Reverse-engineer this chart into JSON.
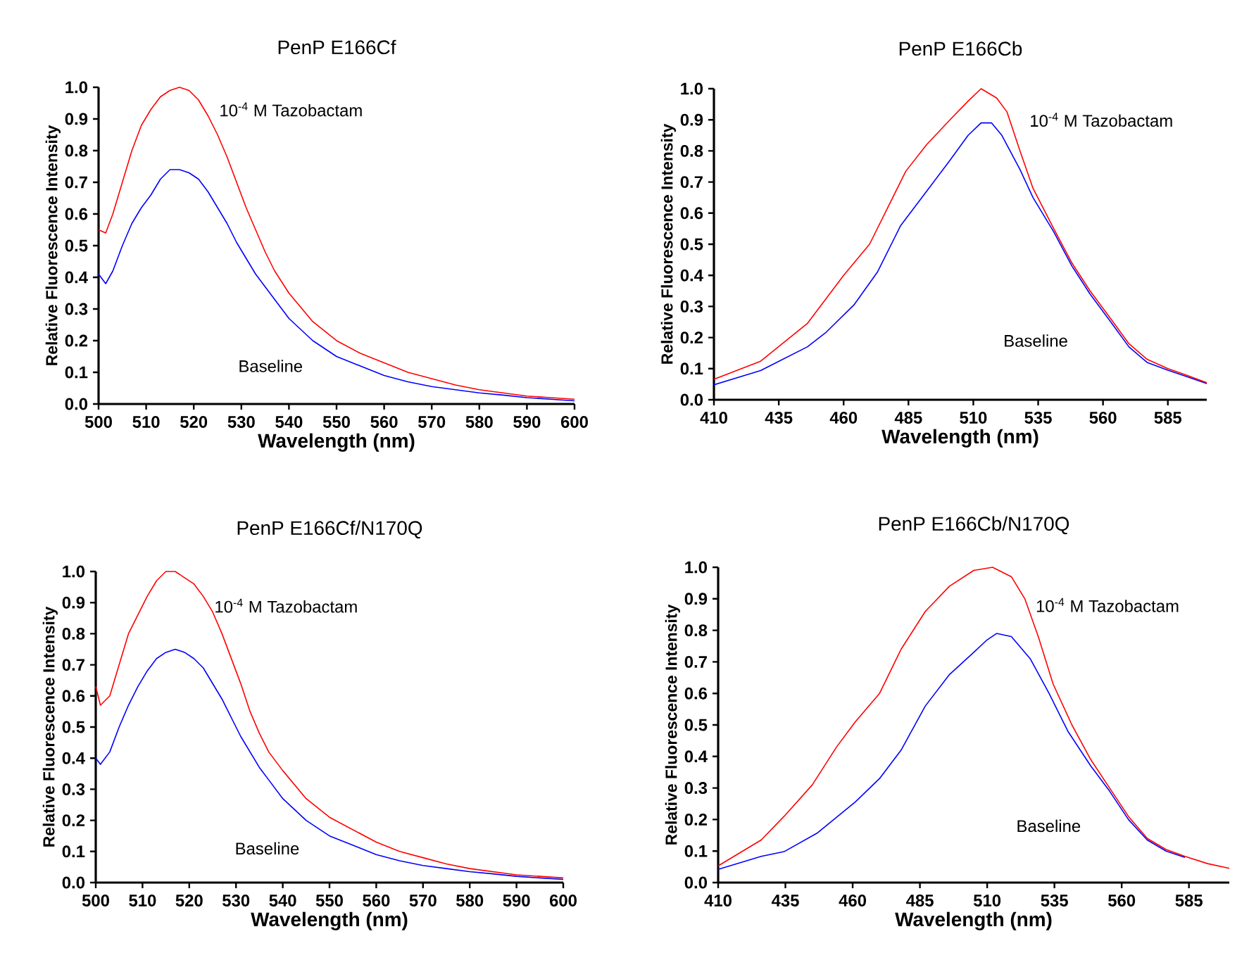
{
  "chart_data": [
    {
      "type": "line",
      "title": "PenP E166Cf",
      "xlabel": "Wavelength (nm)",
      "ylabel": "Relative Fluorescence Intensity",
      "xlim": [
        500,
        600
      ],
      "ylim": [
        0,
        1.0
      ],
      "xticks": [
        500,
        510,
        520,
        530,
        540,
        550,
        560,
        570,
        580,
        590,
        600
      ],
      "yticks": [
        {
          "value": 0,
          "label": "0.0"
        },
        {
          "value": 0.1,
          "label": "0.1"
        },
        {
          "value": 0.2,
          "label": "0.2"
        },
        {
          "value": 0.3,
          "label": "0.3"
        },
        {
          "value": 0.4,
          "label": "0.4"
        },
        {
          "value": 0.5,
          "label": "0.5"
        },
        {
          "value": 0.6,
          "label": "0.6"
        },
        {
          "value": 0.7,
          "label": "0.7"
        },
        {
          "value": 0.8,
          "label": "0.8"
        },
        {
          "value": 0.9,
          "label": "0.9"
        },
        {
          "value": 1,
          "label": "1.0"
        }
      ],
      "series": [
        {
          "color": "#ff0000",
          "x": [
            500,
            501.5,
            503,
            505,
            507,
            509,
            511,
            513,
            515,
            517,
            519,
            521,
            523,
            525,
            527,
            529,
            531,
            533,
            535,
            537,
            540,
            545,
            550,
            555,
            560,
            565,
            570,
            575,
            580,
            585,
            590,
            595,
            600
          ],
          "values": [
            0.55,
            0.54,
            0.6,
            0.7,
            0.8,
            0.88,
            0.93,
            0.97,
            0.99,
            1.0,
            0.99,
            0.96,
            0.91,
            0.85,
            0.78,
            0.7,
            0.62,
            0.55,
            0.48,
            0.42,
            0.35,
            0.26,
            0.2,
            0.16,
            0.13,
            0.1,
            0.08,
            0.06,
            0.045,
            0.035,
            0.025,
            0.02,
            0.015
          ]
        },
        {
          "color": "#0000ff",
          "x": [
            500,
            501.5,
            503,
            505,
            507,
            509,
            511,
            513,
            515,
            517,
            519,
            521,
            523,
            525,
            527,
            529,
            531,
            533,
            535,
            537,
            540,
            545,
            550,
            555,
            560,
            565,
            570,
            575,
            580,
            585,
            590,
            595,
            600
          ],
          "values": [
            0.41,
            0.38,
            0.42,
            0.5,
            0.57,
            0.62,
            0.66,
            0.71,
            0.74,
            0.74,
            0.73,
            0.71,
            0.67,
            0.62,
            0.57,
            0.51,
            0.46,
            0.41,
            0.37,
            0.33,
            0.27,
            0.2,
            0.15,
            0.12,
            0.09,
            0.07,
            0.055,
            0.045,
            0.035,
            0.028,
            0.02,
            0.015,
            0.01
          ]
        }
      ],
      "annotations": [
        "10$^{-4}$ M Tazobactam",
        "Baseline"
      ]
    },
    {
      "type": "line",
      "title": "PenP E166Cb",
      "xlabel": "Wavelength (nm)",
      "ylabel": "Relative Fluorescence Intensity",
      "xlim": [
        410,
        600
      ],
      "ylim": [
        0,
        1.0
      ],
      "xticks": [
        410,
        435,
        460,
        485,
        510,
        535,
        560,
        585
      ],
      "yticks": [
        {
          "value": 0,
          "label": "0.0"
        },
        {
          "value": 0.1,
          "label": "0.1"
        },
        {
          "value": 0.2,
          "label": "0.2"
        },
        {
          "value": 0.3,
          "label": "0.3"
        },
        {
          "value": 0.4,
          "label": "0.4"
        },
        {
          "value": 0.5,
          "label": "0.5"
        },
        {
          "value": 0.6,
          "label": "0.6"
        },
        {
          "value": 0.7,
          "label": "0.7"
        },
        {
          "value": 0.8,
          "label": "0.8"
        },
        {
          "value": 0.9,
          "label": "0.9"
        },
        {
          "value": 1,
          "label": "1.0"
        }
      ],
      "series": [
        {
          "color": "#ff0000",
          "x": [
            410,
            428,
            446,
            460,
            470,
            484,
            492,
            501,
            508,
            513,
            519,
            523,
            528,
            533,
            541,
            548,
            555,
            563,
            570,
            577,
            585,
            592,
            600
          ],
          "values": [
            0.066,
            0.124,
            0.245,
            0.4,
            0.5,
            0.735,
            0.82,
            0.9,
            0.96,
            1.0,
            0.97,
            0.925,
            0.8,
            0.68,
            0.55,
            0.44,
            0.35,
            0.26,
            0.18,
            0.13,
            0.1,
            0.08,
            0.055
          ]
        },
        {
          "color": "#0000ff",
          "x": [
            410,
            428,
            446,
            453,
            464,
            473,
            482,
            492,
            501,
            508,
            513,
            517,
            521,
            528,
            533,
            541,
            548,
            555,
            563,
            570,
            577,
            585,
            592,
            600
          ],
          "values": [
            0.048,
            0.094,
            0.17,
            0.215,
            0.305,
            0.41,
            0.56,
            0.67,
            0.77,
            0.85,
            0.89,
            0.89,
            0.85,
            0.74,
            0.65,
            0.54,
            0.43,
            0.34,
            0.25,
            0.17,
            0.12,
            0.095,
            0.075,
            0.052
          ]
        }
      ],
      "annotations": [
        "10$^{-4}$ M Tazobactam",
        "Baseline"
      ]
    },
    {
      "type": "line",
      "title": "PenP E166Cf/N170Q",
      "xlabel": "Wavelength (nm)",
      "ylabel": "Relative Fluorescence Intensity",
      "xlim": [
        500,
        600
      ],
      "ylim": [
        0,
        1.0
      ],
      "xticks": [
        500,
        510,
        520,
        530,
        540,
        550,
        560,
        570,
        580,
        590,
        600
      ],
      "yticks": [
        {
          "value": 0,
          "label": "0.0"
        },
        {
          "value": 0.1,
          "label": "0.1"
        },
        {
          "value": 0.2,
          "label": "0.2"
        },
        {
          "value": 0.3,
          "label": "0.3"
        },
        {
          "value": 0.4,
          "label": "0.4"
        },
        {
          "value": 0.5,
          "label": "0.5"
        },
        {
          "value": 0.6,
          "label": "0.6"
        },
        {
          "value": 0.7,
          "label": "0.7"
        },
        {
          "value": 0.8,
          "label": "0.8"
        },
        {
          "value": 0.9,
          "label": "0.9"
        },
        {
          "value": 1,
          "label": "1.0"
        }
      ],
      "series": [
        {
          "color": "#ff0000",
          "x": [
            500,
            501,
            503,
            505,
            507,
            509,
            511,
            513,
            515,
            517,
            519,
            521,
            523,
            525,
            527,
            529,
            531,
            533,
            535,
            537,
            540,
            545,
            550,
            555,
            560,
            565,
            570,
            575,
            580,
            585,
            590,
            595,
            600
          ],
          "values": [
            0.63,
            0.57,
            0.6,
            0.7,
            0.8,
            0.86,
            0.92,
            0.97,
            1.0,
            1.0,
            0.98,
            0.96,
            0.92,
            0.87,
            0.8,
            0.72,
            0.64,
            0.55,
            0.48,
            0.42,
            0.36,
            0.27,
            0.21,
            0.17,
            0.13,
            0.1,
            0.08,
            0.06,
            0.045,
            0.035,
            0.025,
            0.02,
            0.015
          ]
        },
        {
          "color": "#0000ff",
          "x": [
            500,
            501,
            503,
            505,
            507,
            509,
            511,
            513,
            515,
            517,
            519,
            521,
            523,
            525,
            527,
            529,
            531,
            533,
            535,
            537,
            540,
            545,
            550,
            555,
            560,
            565,
            570,
            575,
            580,
            585,
            590,
            595,
            600
          ],
          "values": [
            0.4,
            0.38,
            0.42,
            0.5,
            0.57,
            0.63,
            0.68,
            0.72,
            0.74,
            0.75,
            0.74,
            0.72,
            0.69,
            0.64,
            0.59,
            0.53,
            0.47,
            0.42,
            0.37,
            0.33,
            0.27,
            0.2,
            0.15,
            0.12,
            0.09,
            0.07,
            0.055,
            0.045,
            0.035,
            0.028,
            0.02,
            0.015,
            0.01
          ]
        }
      ],
      "annotations": [
        "10$^{-4}$ M Tazobactam",
        "Baseline"
      ]
    },
    {
      "type": "line",
      "title": "PenP E166Cb/N170Q",
      "xlabel": "Wavelength (nm)",
      "ylabel": "Relative Fluorescence Intensity",
      "xlim": [
        410,
        600
      ],
      "ylim": [
        0,
        1.0
      ],
      "xticks": [
        410,
        435,
        460,
        485,
        510,
        535,
        560,
        585
      ],
      "yticks": [
        {
          "value": 0,
          "label": "0.0"
        },
        {
          "value": 0.1,
          "label": "0.1"
        },
        {
          "value": 0.2,
          "label": "0.2"
        },
        {
          "value": 0.3,
          "label": "0.3"
        },
        {
          "value": 0.4,
          "label": "0.4"
        },
        {
          "value": 0.5,
          "label": "0.5"
        },
        {
          "value": 0.6,
          "label": "0.6"
        },
        {
          "value": 0.7,
          "label": "0.7"
        },
        {
          "value": 0.8,
          "label": "0.8"
        },
        {
          "value": 0.9,
          "label": "0.9"
        },
        {
          "value": 1,
          "label": "1.0"
        }
      ],
      "series": [
        {
          "color": "#ff0000",
          "x": [
            410,
            426,
            434.5,
            445,
            454,
            461,
            470,
            478,
            487,
            496,
            505,
            512,
            519,
            524,
            529,
            534.5,
            541.5,
            548.5,
            555.5,
            562.5,
            569.5,
            576.5,
            583.5,
            592,
            600
          ],
          "values": [
            0.053,
            0.135,
            0.21,
            0.31,
            0.43,
            0.51,
            0.6,
            0.74,
            0.86,
            0.94,
            0.99,
            1.0,
            0.97,
            0.9,
            0.78,
            0.63,
            0.5,
            0.39,
            0.3,
            0.21,
            0.14,
            0.105,
            0.083,
            0.06,
            0.045
          ]
        },
        {
          "color": "#0000ff",
          "x": [
            410,
            426,
            434.5,
            447,
            461,
            470,
            478,
            487,
            496,
            505,
            510,
            513.5,
            519,
            526,
            533,
            540,
            548.5,
            555.5,
            562.5,
            569.5,
            576.5,
            583.5
          ],
          "values": [
            0.042,
            0.083,
            0.098,
            0.158,
            0.256,
            0.33,
            0.42,
            0.56,
            0.66,
            0.73,
            0.77,
            0.79,
            0.78,
            0.71,
            0.6,
            0.48,
            0.37,
            0.29,
            0.2,
            0.135,
            0.1,
            0.08
          ]
        }
      ],
      "annotations": [
        "10$^{-4}$ M Tazobactam",
        "Baseline"
      ]
    }
  ]
}
